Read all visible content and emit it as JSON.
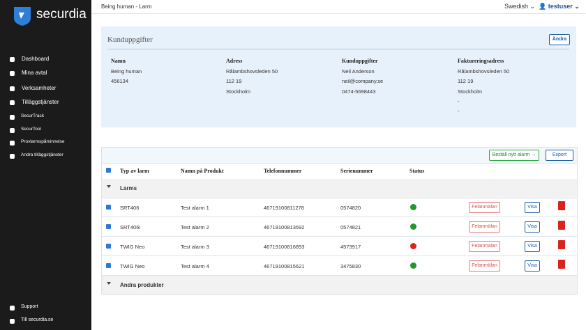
{
  "sidebar": {
    "brand": "securdia",
    "nav": [
      "Dashboard",
      "Mina avtal",
      "Verksamheter",
      "Tilläggstjänster"
    ],
    "subnav": [
      "SecurTrack",
      "SecurTool",
      "Provlarmspåminnelse",
      "Andra tilläggstjänster"
    ],
    "footer": [
      "Support",
      "Till securdia.se"
    ]
  },
  "header": {
    "breadcrumb": "Being human - Larm",
    "language": "Swedish",
    "user": "testuser"
  },
  "customer": {
    "title": "Kunduppgifter",
    "edit": "Ändra",
    "columns": [
      {
        "heading": "Namn",
        "lines": [
          "Being human",
          "456134"
        ]
      },
      {
        "heading": "Adress",
        "lines": [
          "Rålambshovsleden 50",
          "112 19",
          "Stockholm"
        ]
      },
      {
        "heading": "Kunduppgifter",
        "lines": [
          "Neil Anderson",
          "neil@company.se",
          "0474-5698443"
        ]
      },
      {
        "heading": "Faktureringsadress",
        "lines": [
          "Rålambshovsleden 50",
          "112 19",
          "Stockholm",
          "-",
          "-"
        ]
      }
    ]
  },
  "table": {
    "order_button": "Beställ nytt alarm →",
    "export_button": "Export",
    "report_button": "Felanmälan",
    "view_button": "Visa",
    "columns": [
      "Typ av larm",
      "Namn på Produkt",
      "Telefonnummer",
      "Serienummer",
      "Status"
    ],
    "groups": [
      {
        "name": "Larms",
        "rows": [
          {
            "cells": [
              "SRT406",
              "Test alarm 1",
              "46719100811278",
              "0574820"
            ],
            "status": "#1f9a2a"
          },
          {
            "cells": [
              "SRT406i",
              "Test alarm 2",
              "46719100813592",
              "0574821"
            ],
            "status": "#1f9a2a"
          },
          {
            "cells": [
              "TWIG Neo",
              "Test alarm 3",
              "46719100816893",
              "4573917"
            ],
            "status": "#e3201b"
          },
          {
            "cells": [
              "TWIG Neo",
              "Test alarm 4",
              "46719100815621",
              "3475830"
            ],
            "status": "#1f9a2a"
          }
        ]
      },
      {
        "name": "Andra produkter"
      }
    ]
  }
}
